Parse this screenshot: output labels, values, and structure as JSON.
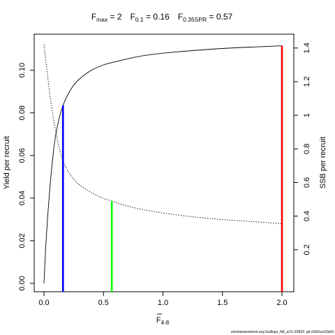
{
  "title": {
    "fmax_label": "F",
    "fmax_sub": "max",
    "fmax_value": " = 2",
    "f01_label": "F",
    "f01_sub": "0.1",
    "f01_value": " = 0.16",
    "fspr_label": "F",
    "fspr_sub": "0.35SPR",
    "fspr_value": " = 0.57"
  },
  "footer": "stockassessment.org,Scallops_NE_a13,r18502, git:c9c81ac53a0d",
  "chart_data": {
    "type": "line",
    "xlabel": "F",
    "xlabel_sub": "4-8",
    "ylabel_left": "Yield per recruit",
    "ylabel_right": "SSB per recruit",
    "xlim": [
      0,
      2
    ],
    "ylim_left": [
      0,
      0.112
    ],
    "ylim_right": [
      0,
      1.42
    ],
    "x_ticks": [
      "0.0",
      "0.5",
      "1.0",
      "1.5",
      "2.0"
    ],
    "x_tick_values": [
      0,
      0.5,
      1.0,
      1.5,
      2.0
    ],
    "y_left_ticks": [
      "0.00",
      "0.02",
      "0.04",
      "0.06",
      "0.08",
      "0.10"
    ],
    "y_left_tick_values": [
      0,
      0.02,
      0.04,
      0.06,
      0.08,
      0.1
    ],
    "y_right_ticks": [
      "0.2",
      "0.4",
      "0.6",
      "0.8",
      "1",
      "1.2",
      "1.4"
    ],
    "y_right_tick_values": [
      0.2,
      0.4,
      0.6,
      0.8,
      1.0,
      1.2,
      1.4
    ],
    "series": [
      {
        "axis": "left",
        "style": "solid",
        "color": "#000000",
        "x": [
          0,
          0.02,
          0.05,
          0.08,
          0.1,
          0.13,
          0.16,
          0.2,
          0.25,
          0.3,
          0.4,
          0.5,
          0.6,
          0.8,
          1.0,
          1.2,
          1.5,
          1.8,
          2.0
        ],
        "y": [
          0.0,
          0.022,
          0.045,
          0.062,
          0.07,
          0.078,
          0.0835,
          0.0885,
          0.093,
          0.096,
          0.1,
          0.1025,
          0.104,
          0.1065,
          0.108,
          0.109,
          0.1102,
          0.111,
          0.1115
        ]
      },
      {
        "axis": "right",
        "style": "dotted",
        "color": "#000000",
        "x": [
          0,
          0.02,
          0.05,
          0.08,
          0.1,
          0.13,
          0.16,
          0.2,
          0.25,
          0.3,
          0.4,
          0.5,
          0.57,
          0.7,
          0.9,
          1.2,
          1.5,
          1.8,
          2.0
        ],
        "y": [
          1.42,
          1.3,
          1.12,
          0.98,
          0.9,
          0.8,
          0.73,
          0.67,
          0.62,
          0.585,
          0.54,
          0.505,
          0.49,
          0.46,
          0.43,
          0.4,
          0.38,
          0.365,
          0.355
        ]
      }
    ],
    "reference_lines": [
      {
        "name": "F0.1",
        "x": 0.16,
        "axis": "left",
        "y": 0.0835,
        "color": "#0000ff"
      },
      {
        "name": "F0.35SPR",
        "x": 0.57,
        "axis": "right",
        "y": 0.49,
        "color": "#00ff00"
      },
      {
        "name": "Fmax",
        "x": 2.0,
        "axis": "left",
        "y": 0.1115,
        "color": "#ff0000"
      }
    ]
  }
}
